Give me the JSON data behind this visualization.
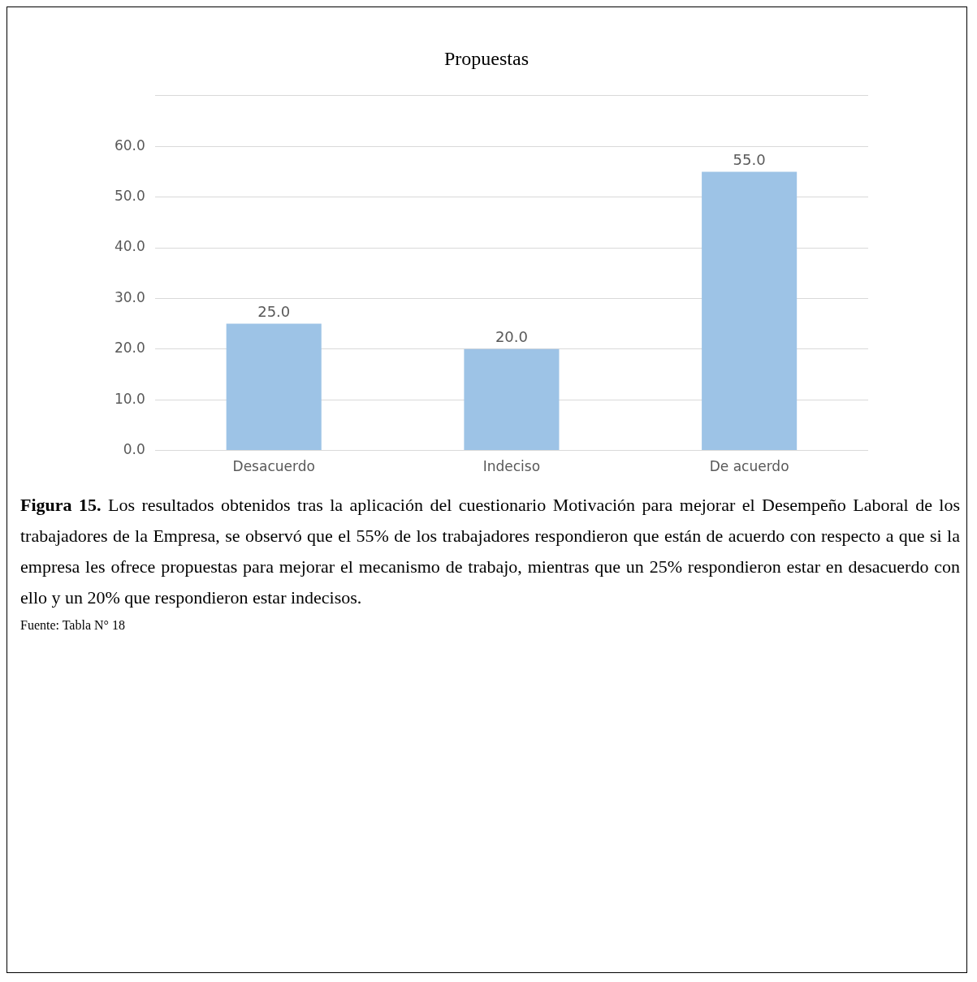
{
  "chart_data": {
    "type": "bar",
    "title": "Propuestas",
    "categories": [
      "Desacuerdo",
      "Indeciso",
      "De acuerdo"
    ],
    "values": [
      25,
      20,
      55
    ],
    "value_labels": [
      "25.0",
      "20.0",
      "55.0"
    ],
    "color": "#9dc3e6",
    "ylim": [
      0,
      70
    ],
    "yticks": [
      {
        "value": 0,
        "label": "0.0"
      },
      {
        "value": 10,
        "label": "10.0"
      },
      {
        "value": 20,
        "label": "20.0"
      },
      {
        "value": 30,
        "label": "30.0"
      },
      {
        "value": 40,
        "label": "40.0"
      },
      {
        "value": 50,
        "label": "50.0"
      },
      {
        "value": 60,
        "label": "60.0"
      },
      {
        "value": 70,
        "label": null
      }
    ],
    "grid": "y",
    "annotations": [
      "Figura 15.",
      "Los resultados obtenidos tras la aplicación del cuestionario Motivación para mejorar el Desempeño Laboral de los trabajadores de la Empresa, se observó que el 55% de los trabajadores respondieron que están de acuerdo con respecto a que si la empresa les ofrece propuestas para mejorar el mecanismo de trabajo, mientras que un 25% respondieron estar en desacuerdo con ello y un 20% que respondieron estar indecisos.",
      "Fuente: Tabla N° 18"
    ]
  }
}
